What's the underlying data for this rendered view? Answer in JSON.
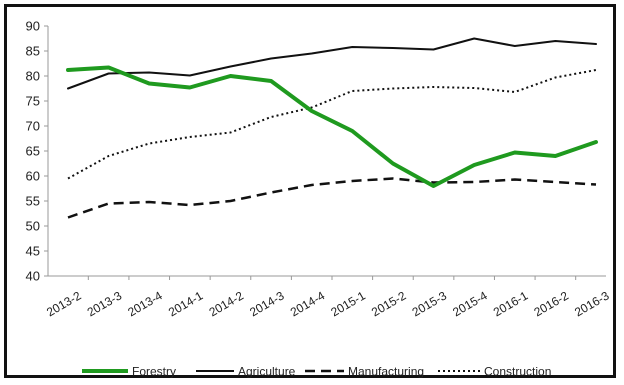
{
  "chart_data": {
    "type": "line",
    "title": "",
    "xlabel": "",
    "ylabel": "",
    "ylim": [
      40,
      90
    ],
    "yticks": [
      40,
      45,
      50,
      55,
      60,
      65,
      70,
      75,
      80,
      85,
      90
    ],
    "categories": [
      "2013-2",
      "2013-3",
      "2013-4",
      "2014-1",
      "2014-2",
      "2014-3",
      "2014-4",
      "2015-1",
      "2015-2",
      "2015-3",
      "2015-4",
      "2016-1",
      "2016-2",
      "2016-3"
    ],
    "legend_position": "bottom",
    "grid": false,
    "series": [
      {
        "name": "Forestry",
        "color": "#1f9a1f",
        "style": "solid-thick",
        "values": [
          81.2,
          81.7,
          78.5,
          77.7,
          80.0,
          79.0,
          73.0,
          69.0,
          62.5,
          58.0,
          62.2,
          64.7,
          64.0,
          66.8
        ]
      },
      {
        "name": "Agriculture",
        "color": "#111111",
        "style": "solid",
        "values": [
          77.5,
          80.5,
          80.7,
          80.1,
          81.9,
          83.5,
          84.5,
          85.8,
          85.6,
          85.3,
          87.5,
          86.0,
          87.0,
          86.4
        ]
      },
      {
        "name": "Manufacturing",
        "color": "#111111",
        "style": "dashed",
        "values": [
          51.7,
          54.5,
          54.8,
          54.2,
          55.0,
          56.7,
          58.2,
          59.0,
          59.5,
          58.7,
          58.8,
          59.3,
          58.8,
          58.3
        ]
      },
      {
        "name": "Construction",
        "color": "#111111",
        "style": "dotted",
        "values": [
          59.5,
          64.0,
          66.5,
          67.8,
          68.7,
          71.8,
          73.7,
          77.0,
          77.5,
          77.8,
          77.6,
          76.8,
          79.7,
          81.2
        ]
      }
    ]
  }
}
